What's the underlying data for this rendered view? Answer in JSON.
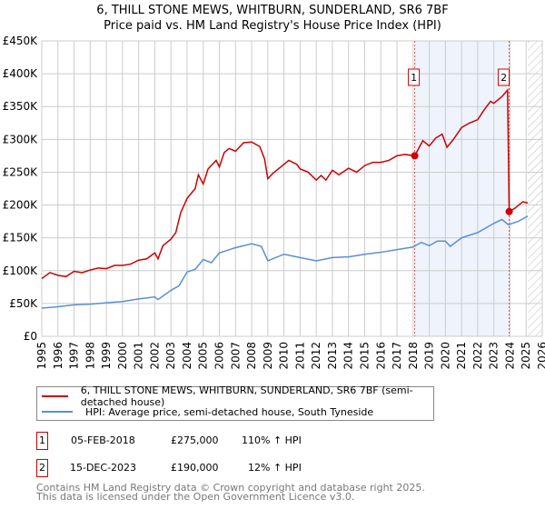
{
  "title": "6, THILL STONE MEWS, WHITBURN, SUNDERLAND, SR6 7BF",
  "subtitle": "Price paid vs. HM Land Registry's House Price Index (HPI)",
  "chart_data": {
    "type": "line",
    "title": "6, THILL STONE MEWS, WHITBURN, SUNDERLAND, SR6 7BF",
    "xlim": [
      1995,
      2026
    ],
    "ylim": [
      0,
      450000
    ],
    "yticks": [
      {
        "v": 0,
        "label": "£0"
      },
      {
        "v": 50000,
        "label": "£50K"
      },
      {
        "v": 100000,
        "label": "£100K"
      },
      {
        "v": 150000,
        "label": "£150K"
      },
      {
        "v": 200000,
        "label": "£200K"
      },
      {
        "v": 250000,
        "label": "£250K"
      },
      {
        "v": 300000,
        "label": "£300K"
      },
      {
        "v": 350000,
        "label": "£350K"
      },
      {
        "v": 400000,
        "label": "£400K"
      },
      {
        "v": 450000,
        "label": "£450K"
      }
    ],
    "xticks": [
      "1995",
      "1996",
      "1997",
      "1998",
      "1999",
      "2000",
      "2001",
      "2002",
      "2003",
      "2004",
      "2005",
      "2006",
      "2007",
      "2008",
      "2009",
      "2010",
      "2011",
      "2012",
      "2013",
      "2014",
      "2015",
      "2016",
      "2017",
      "2018",
      "2019",
      "2020",
      "2021",
      "2022",
      "2023",
      "2024",
      "2025",
      "2026"
    ],
    "series": [
      {
        "name": "6, THILL STONE MEWS, WHITBURN, SUNDERLAND, SR6 7BF (semi-detached house)",
        "color": "#cc0000",
        "x": [
          1995,
          1995.5,
          1996,
          1996.5,
          1997,
          1997.5,
          1998,
          1998.5,
          1999,
          1999.5,
          2000,
          2000.5,
          2001,
          2001.5,
          2002,
          2002.2,
          2002.5,
          2003,
          2003.3,
          2003.6,
          2004,
          2004.5,
          2004.7,
          2005,
          2005.3,
          2005.8,
          2006,
          2006.3,
          2006.6,
          2007,
          2007.5,
          2008,
          2008.5,
          2008.8,
          2009,
          2009.3,
          2010,
          2010.3,
          2010.8,
          2011,
          2011.5,
          2012,
          2012.3,
          2012.6,
          2013,
          2013.4,
          2014,
          2014.5,
          2015,
          2015.5,
          2016,
          2016.5,
          2017,
          2017.5,
          2018.1,
          2018.6,
          2019,
          2019.4,
          2019.8,
          2020.1,
          2020.5,
          2021,
          2021.5,
          2022,
          2022.4,
          2022.8,
          2023,
          2023.5,
          2023.85,
          2023.95,
          2024.3,
          2024.8,
          2025.1
        ],
        "y": [
          88,
          97,
          93,
          91,
          99,
          97,
          101,
          104,
          103,
          108,
          108,
          110,
          116,
          118,
          127,
          118,
          138,
          148,
          158,
          188,
          210,
          225,
          246,
          232,
          255,
          268,
          258,
          280,
          286,
          282,
          295,
          296,
          289,
          270,
          240,
          248,
          262,
          268,
          262,
          255,
          250,
          238,
          245,
          238,
          253,
          246,
          256,
          250,
          260,
          265,
          265,
          268,
          275,
          277,
          275,
          298,
          290,
          302,
          308,
          288,
          300,
          318,
          325,
          330,
          345,
          358,
          355,
          365,
          375,
          190,
          195,
          205,
          203
        ]
      },
      {
        "name": "HPI: Average price, semi-detached house, South Tyneside",
        "color": "#5b8fd4",
        "x": [
          1995,
          1996,
          1997,
          1998,
          1999,
          2000,
          2001,
          2002,
          2002.2,
          2003,
          2003.5,
          2004,
          2004.5,
          2005,
          2005.5,
          2006,
          2007,
          2008,
          2008.6,
          2009,
          2010,
          2011,
          2012,
          2013,
          2014,
          2015,
          2016,
          2017,
          2018,
          2018.5,
          2019,
          2019.5,
          2020,
          2020.3,
          2021,
          2022,
          2023,
          2023.5,
          2023.9,
          2024.5,
          2025.1
        ],
        "y": [
          43,
          45,
          48,
          49,
          51,
          53,
          57,
          60,
          56,
          70,
          77,
          98,
          102,
          117,
          112,
          127,
          135,
          141,
          137,
          115,
          125,
          120,
          115,
          120,
          121,
          125,
          128,
          132,
          136,
          143,
          138,
          145,
          145,
          137,
          150,
          158,
          172,
          178,
          170,
          175,
          183
        ]
      }
    ],
    "y_units": "thousands GBP",
    "sales": [
      {
        "id": "1",
        "x": 2018.1,
        "y": 275
      },
      {
        "id": "2",
        "x": 2023.95,
        "y": 190
      }
    ],
    "legend_position": "below"
  },
  "legend": [
    {
      "label": "6, THILL STONE MEWS, WHITBURN, SUNDERLAND, SR6 7BF (semi-detached house)",
      "color": "#cc0000"
    },
    {
      "label": "HPI: Average price, semi-detached house, South Tyneside",
      "color": "#5b8fd4"
    }
  ],
  "transactions": [
    {
      "id": "1",
      "date": "05-FEB-2018",
      "price": "£275,000",
      "hpi": "110% ↑ HPI"
    },
    {
      "id": "2",
      "date": "15-DEC-2023",
      "price": "£190,000",
      "hpi": "12% ↑ HPI"
    }
  ],
  "footer": [
    "Contains HM Land Registry data © Crown copyright and database right 2025.",
    "This data is licensed under the Open Government Licence v3.0."
  ]
}
